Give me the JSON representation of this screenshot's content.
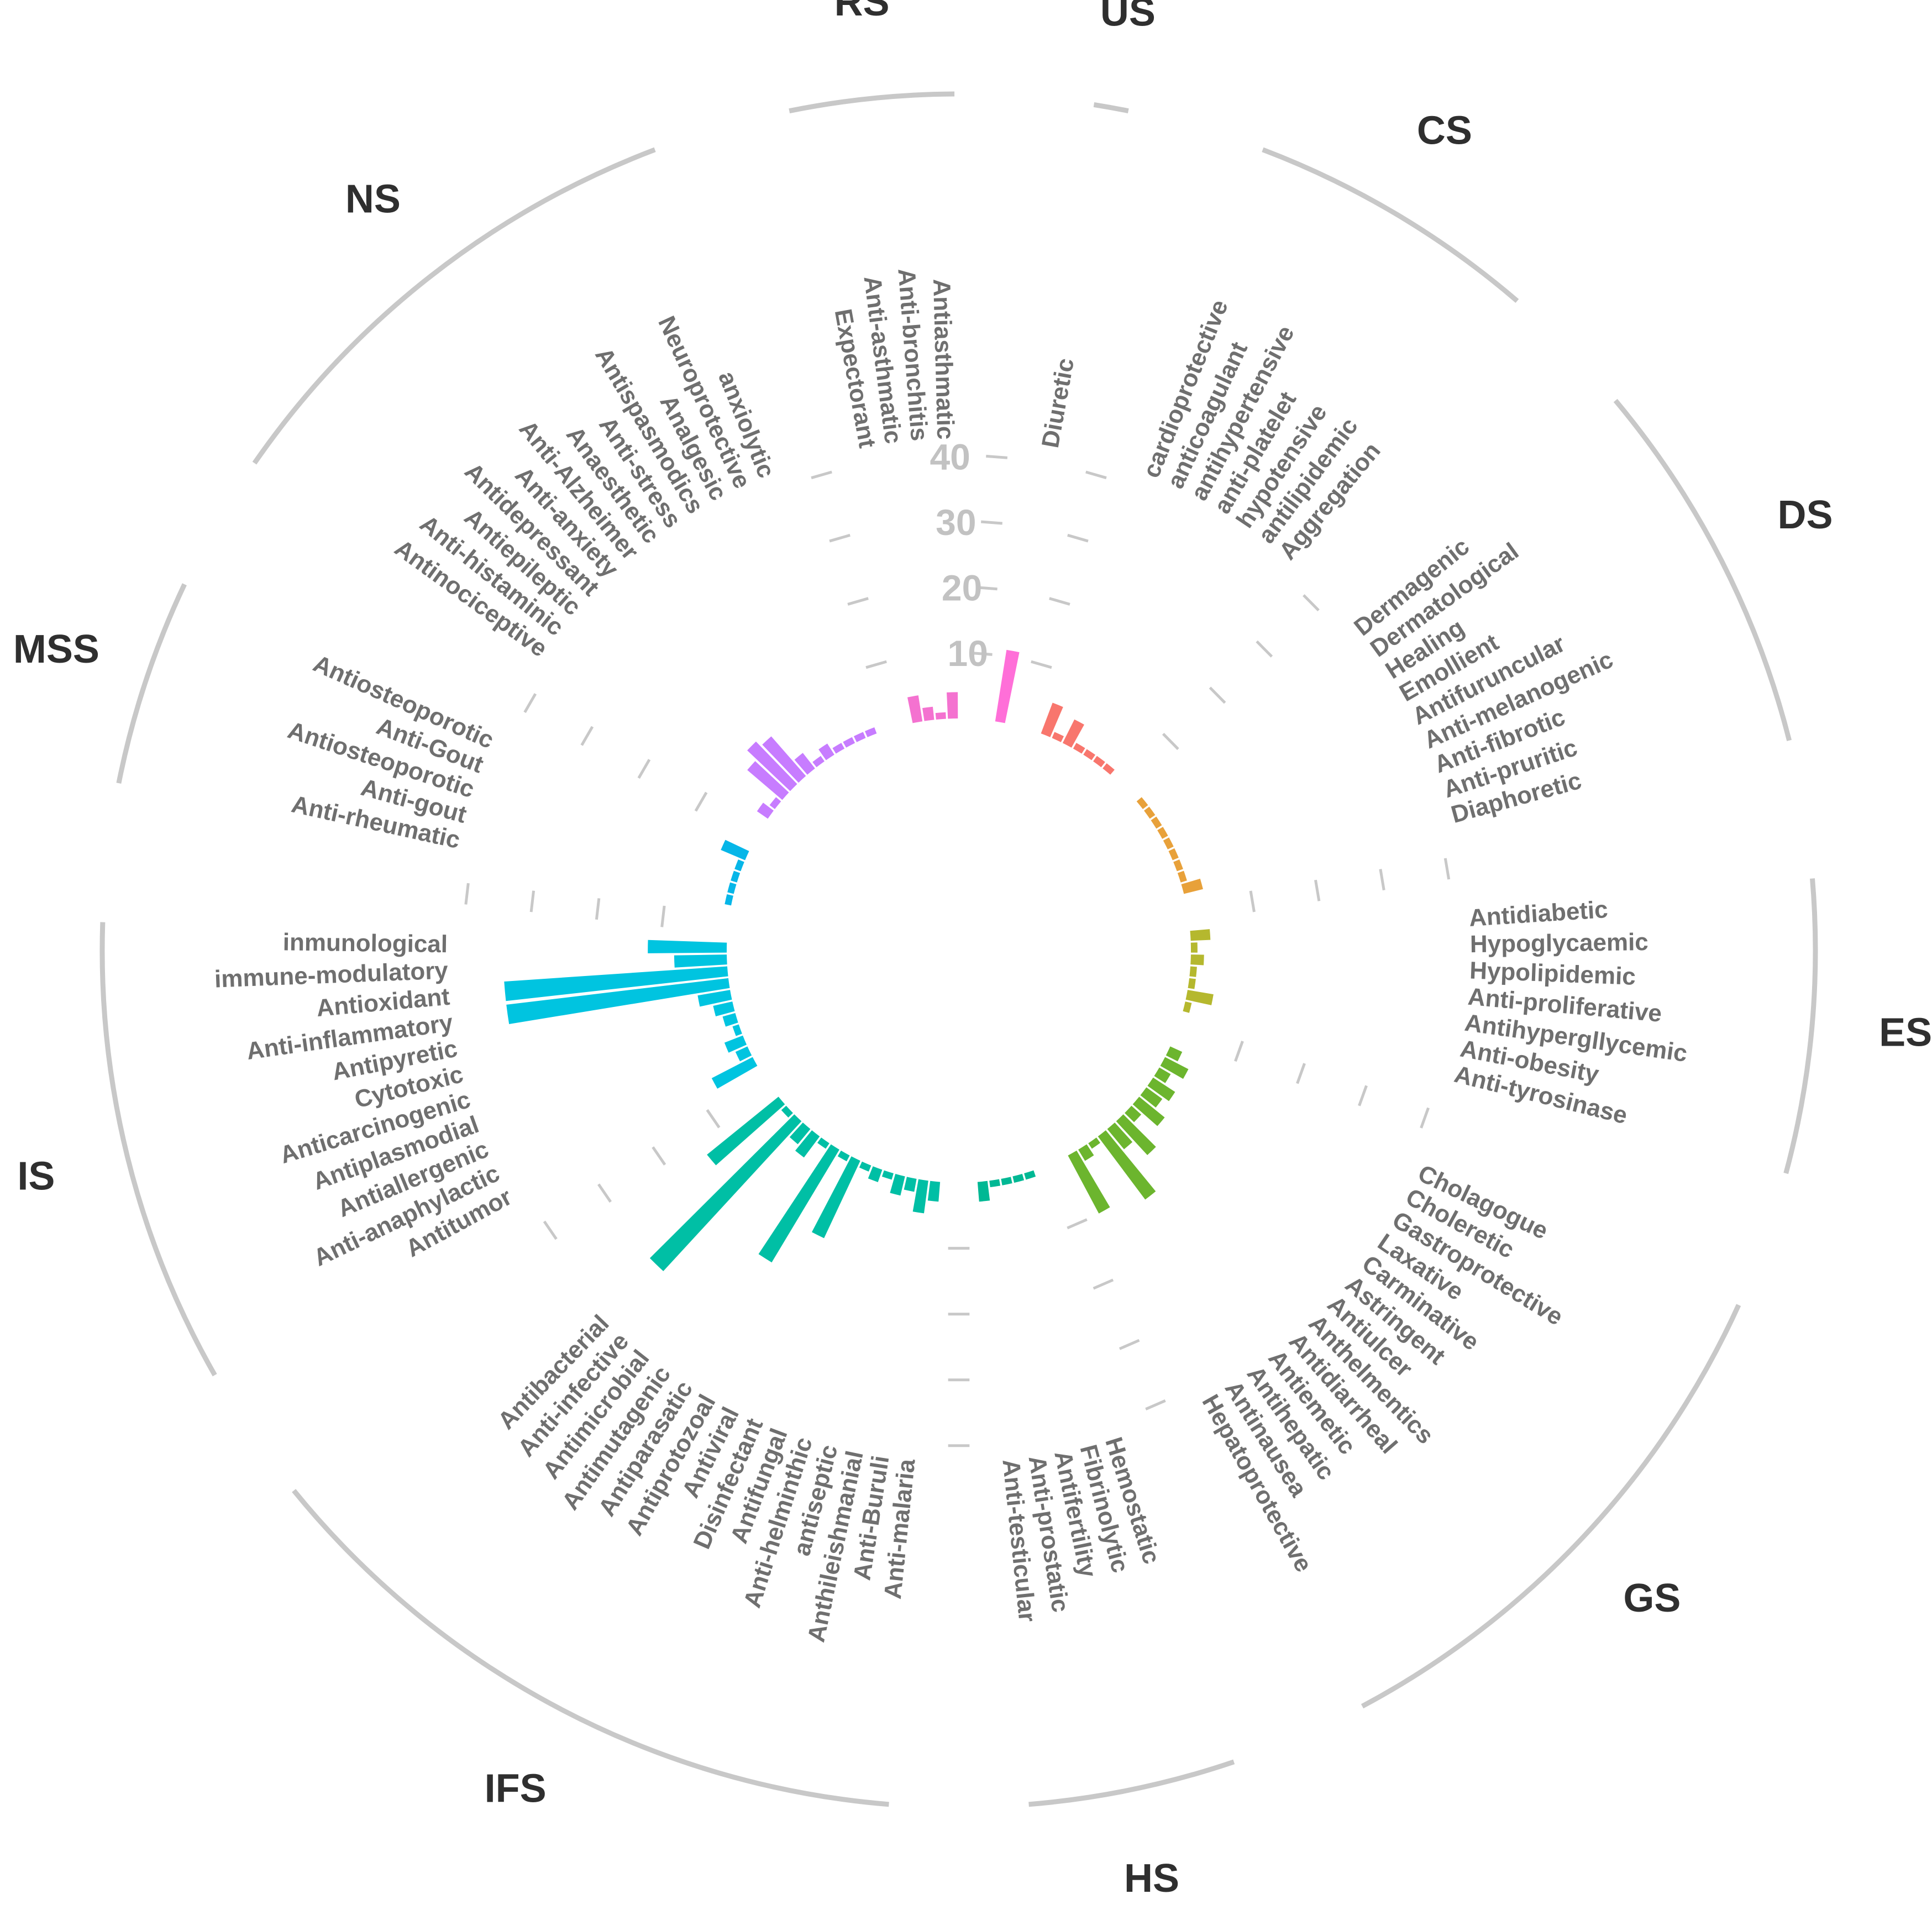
{
  "chart_data": {
    "type": "bar",
    "layout": "circular",
    "ylim": [
      0,
      40
    ],
    "ticks": [
      "10",
      "20",
      "30",
      "40"
    ],
    "groups": [
      {
        "name": "US",
        "color": "#FF6FD8",
        "items": [
          {
            "label": "Diuretic",
            "value": 11
          }
        ]
      },
      {
        "name": "CS",
        "color": "#F8766D",
        "items": [
          {
            "label": "cardioprotective",
            "value": 5
          },
          {
            "label": "anticoagulant",
            "value": 1
          },
          {
            "label": "antihypertensive",
            "value": 4
          },
          {
            "label": "anti-platelet",
            "value": 1
          },
          {
            "label": "hypotensive",
            "value": 1
          },
          {
            "label": "antilipidemic",
            "value": 1
          },
          {
            "label": "Aggregation",
            "value": 1
          }
        ]
      },
      {
        "name": "DS",
        "color": "#E8A13A",
        "items": [
          {
            "label": "Dermagenic",
            "value": 1
          },
          {
            "label": "Dermatological",
            "value": 1
          },
          {
            "label": "Healing",
            "value": 1
          },
          {
            "label": "Emollient",
            "value": 1
          },
          {
            "label": "Antifuruncular",
            "value": 1
          },
          {
            "label": "Anti-melanogenic",
            "value": 1
          },
          {
            "label": "Anti-fibrotic",
            "value": 1
          },
          {
            "label": "Anti-pruritic",
            "value": 1
          },
          {
            "label": "Diaphoretic",
            "value": 3
          }
        ]
      },
      {
        "name": "ES",
        "color": "#B5B82E",
        "items": [
          {
            "label": "Antidiabetic",
            "value": 3
          },
          {
            "label": "Hypoglycaemic",
            "value": 1
          },
          {
            "label": "Hypolipidemic",
            "value": 2
          },
          {
            "label": "Anti-proliferative",
            "value": 1
          },
          {
            "label": "Antihypergllycemic",
            "value": 1
          },
          {
            "label": "Anti-obesity",
            "value": 4
          },
          {
            "label": "Anti-tyrosinase",
            "value": 1
          }
        ]
      },
      {
        "name": "GS",
        "color": "#6CB52E",
        "items": [
          {
            "label": "Cholagogue",
            "value": 2
          },
          {
            "label": "Choleretic",
            "value": 4
          },
          {
            "label": "Gastroprotective",
            "value": 2
          },
          {
            "label": "Laxative",
            "value": 4
          },
          {
            "label": "Carminative",
            "value": 3
          },
          {
            "label": "Astringent",
            "value": 5
          },
          {
            "label": "Antiulcer",
            "value": 2
          },
          {
            "label": "Anthelmentics",
            "value": 7
          },
          {
            "label": "Antidiarrheal",
            "value": 4
          },
          {
            "label": "Antiemetic",
            "value": 12
          },
          {
            "label": "Antihepatic",
            "value": 1
          },
          {
            "label": "Antinausea",
            "value": 2
          },
          {
            "label": "Hepatoprotective",
            "value": 10
          }
        ]
      },
      {
        "name": "HS",
        "color": "#00B894",
        "items": [
          {
            "label": "Hemostatic",
            "value": 1
          },
          {
            "label": "Fibrinolytic",
            "value": 1
          },
          {
            "label": "Antifertility",
            "value": 1
          },
          {
            "label": "Anti-prostatic",
            "value": 1
          },
          {
            "label": "Anti-testicular",
            "value": 3
          }
        ]
      },
      {
        "name": "IFS",
        "color": "#00BFA5",
        "items": [
          {
            "label": "Anti-malaria",
            "value": 3
          },
          {
            "label": "Anti-Buruli",
            "value": 5
          },
          {
            "label": "Anthileishmanial",
            "value": 2
          },
          {
            "label": "antiseptic",
            "value": 3
          },
          {
            "label": "Anti-helminthic",
            "value": 1
          },
          {
            "label": "Antifungal",
            "value": 2
          },
          {
            "label": "Disinfectant",
            "value": 1
          },
          {
            "label": "Antiviral",
            "value": 13
          },
          {
            "label": "Antiprotozoal",
            "value": 1
          },
          {
            "label": "Antiparasatic",
            "value": 20
          },
          {
            "label": "Antimutagenic",
            "value": 1
          },
          {
            "label": "Antimicrobial",
            "value": 4
          },
          {
            "label": "Anti-infective",
            "value": 3
          },
          {
            "label": "Antibacterial",
            "value": 31
          },
          {
            "label": "",
            "value": 1
          },
          {
            "label": "",
            "value": 14
          }
        ]
      },
      {
        "name": "IS",
        "color": "#00C4E0",
        "items": [
          {
            "label": "Antitumor",
            "value": 7
          },
          {
            "label": "Anti-anaphylactic",
            "value": 2
          },
          {
            "label": "Antiallergenic",
            "value": 3
          },
          {
            "label": "Antiplasmodial",
            "value": 1
          },
          {
            "label": "Anticarcinogenic",
            "value": 2
          },
          {
            "label": "Cytotoxic",
            "value": 3
          },
          {
            "label": "Antipyretic",
            "value": 5
          },
          {
            "label": "Anti-inflammatory",
            "value": 34
          },
          {
            "label": "Antioxidant",
            "value": 34
          },
          {
            "label": "immune-modulatory",
            "value": 8
          },
          {
            "label": "inmunological",
            "value": 12
          }
        ]
      },
      {
        "name": "MSS",
        "color": "#06B6E8",
        "items": [
          {
            "label": "Anti-rheumatic",
            "value": 1
          },
          {
            "label": "Anti-gout",
            "value": 1
          },
          {
            "label": "Antiosteoporotic",
            "value": 1
          },
          {
            "label": "Anti-Gout",
            "value": 1
          },
          {
            "label": "Antiosteoporotic",
            "value": 4
          }
        ]
      },
      {
        "name": "NS",
        "color": "#C77CFF",
        "items": [
          {
            "label": "Antinociceptive",
            "value": 2
          },
          {
            "label": "Anti-histaminic",
            "value": 1
          },
          {
            "label": "Antiepileptic",
            "value": 7
          },
          {
            "label": "Antidepressant",
            "value": 9
          },
          {
            "label": "Anti-anxiety",
            "value": 8
          },
          {
            "label": "Anti-Alzheimer",
            "value": 3
          },
          {
            "label": "Anaesthetic",
            "value": 1
          },
          {
            "label": "Anti-stress",
            "value": 2
          },
          {
            "label": "Antispasmodics",
            "value": 1
          },
          {
            "label": "Analgesic",
            "value": 1
          },
          {
            "label": "Neuroprotective",
            "value": 1
          },
          {
            "label": "anxiolytic",
            "value": 1
          }
        ]
      },
      {
        "name": "RS",
        "color": "#F472D0",
        "items": [
          {
            "label": "Expectorant",
            "value": 4
          },
          {
            "label": "Anti-asthmatic",
            "value": 2
          },
          {
            "label": "Anti-bronchitis",
            "value": 1
          },
          {
            "label": "Antiasthmatic",
            "value": 4
          }
        ]
      }
    ]
  }
}
